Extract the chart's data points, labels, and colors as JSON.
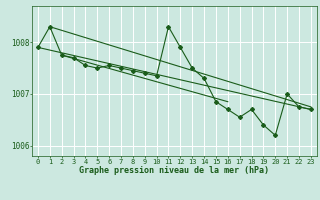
{
  "title": "Graphe pression niveau de la mer (hPa)",
  "bg_color": "#cce8e0",
  "grid_color": "#ffffff",
  "line_color": "#1a5c1a",
  "xlim": [
    -0.5,
    23.5
  ],
  "ylim": [
    1005.8,
    1008.7
  ],
  "yticks": [
    1006,
    1007,
    1008
  ],
  "xticks": [
    0,
    1,
    2,
    3,
    4,
    5,
    6,
    7,
    8,
    9,
    10,
    11,
    12,
    13,
    14,
    15,
    16,
    17,
    18,
    19,
    20,
    21,
    22,
    23
  ],
  "series1_x": [
    0,
    1,
    2,
    3,
    4,
    5,
    6,
    7,
    8,
    9,
    10,
    11,
    12,
    13,
    14,
    15,
    16,
    17,
    18,
    19,
    20,
    21,
    22,
    23
  ],
  "series1_y": [
    1007.9,
    1008.3,
    1007.75,
    1007.7,
    1007.55,
    1007.5,
    1007.55,
    1007.5,
    1007.45,
    1007.4,
    1007.35,
    1008.3,
    1007.9,
    1007.5,
    1007.3,
    1006.85,
    1006.7,
    1006.55,
    1006.7,
    1006.4,
    1006.2,
    1007.0,
    1006.75,
    1006.7
  ],
  "series2_x": [
    0,
    23
  ],
  "series2_y": [
    1007.9,
    1006.7
  ],
  "series3_x": [
    1,
    23
  ],
  "series3_y": [
    1008.3,
    1006.75
  ],
  "series4_x": [
    2,
    16
  ],
  "series4_y": [
    1007.75,
    1006.85
  ],
  "title_fontsize": 6,
  "tick_fontsize": 5
}
